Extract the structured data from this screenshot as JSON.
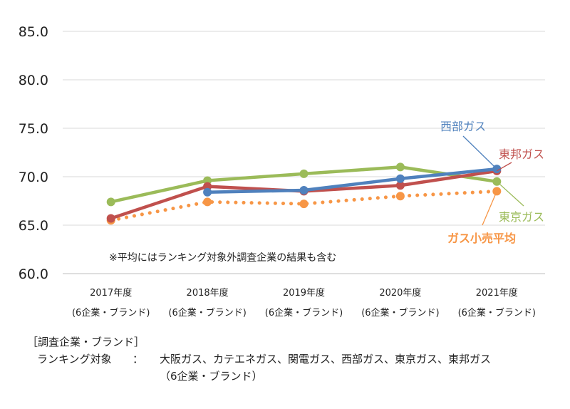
{
  "chart_data": {
    "type": "line",
    "ylim": [
      60,
      85
    ],
    "yticks": [
      "85.0",
      "80.0",
      "75.0",
      "70.0",
      "65.0",
      "60.0"
    ],
    "grid": true,
    "categories": [
      [
        "2017年度",
        "(6企業・ブランド)"
      ],
      [
        "2018年度",
        "(6企業・ブランド)"
      ],
      [
        "2019年度",
        "(6企業・ブランド)"
      ],
      [
        "2020年度",
        "(6企業・ブランド)"
      ],
      [
        "2021年度",
        "(6企業・ブランド)"
      ]
    ],
    "series": [
      {
        "name": "西部ガス",
        "color": "#4f81bd",
        "style": "solid",
        "values": [
          null,
          68.4,
          68.6,
          69.8,
          70.8
        ]
      },
      {
        "name": "東邦ガス",
        "color": "#c0504d",
        "style": "solid",
        "values": [
          65.7,
          69.0,
          68.5,
          69.1,
          70.6
        ]
      },
      {
        "name": "東京ガス",
        "color": "#9bbb59",
        "style": "solid",
        "values": [
          67.4,
          69.6,
          70.3,
          71.0,
          69.5
        ]
      },
      {
        "name": "ガス小売平均",
        "color": "#f79646",
        "style": "dotted",
        "values": [
          65.5,
          67.4,
          67.2,
          68.0,
          68.5
        ]
      }
    ],
    "annotation": "※平均にはランキング対象外調査企業の結果も含む"
  },
  "footer": {
    "heading": "［調査企業・ブランド］",
    "label": "ランキング対象",
    "colon": "：",
    "companies": "大阪ガス、カテエネガス、関電ガス、西部ガス、東京ガス、東邦ガス",
    "count": "（6企業・ブランド）"
  }
}
